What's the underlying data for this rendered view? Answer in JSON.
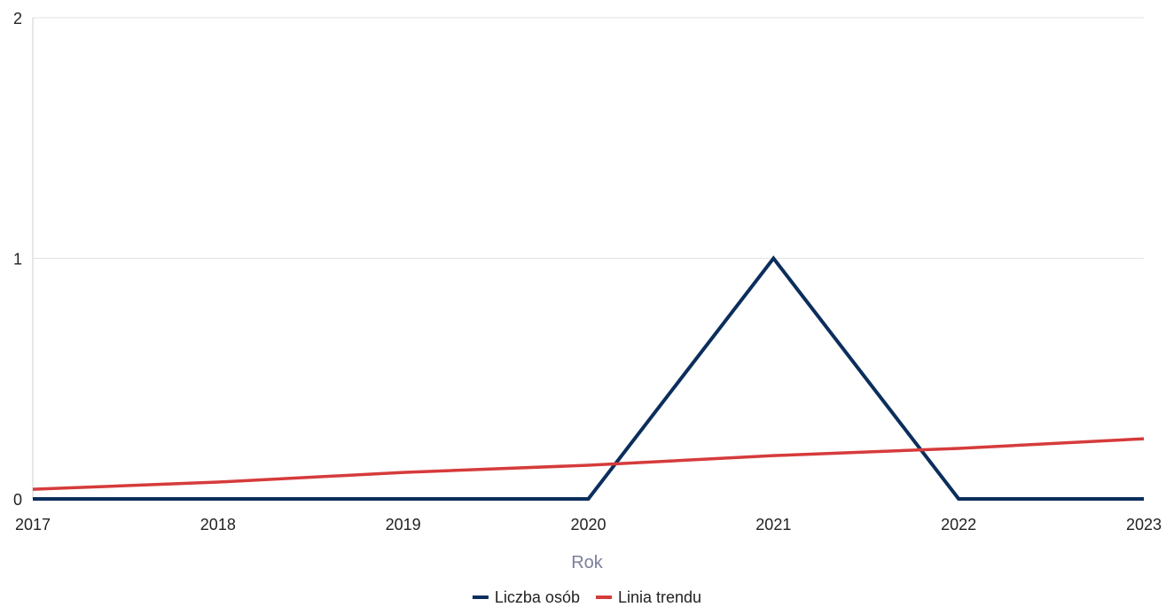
{
  "chart_data": {
    "type": "line",
    "title": "",
    "xlabel": "Rok",
    "ylabel": "",
    "x": [
      2017,
      2018,
      2019,
      2020,
      2021,
      2022,
      2023
    ],
    "xlim": [
      2017,
      2023
    ],
    "ylim": [
      0,
      2
    ],
    "y_ticks": [
      0,
      1,
      2
    ],
    "grid": "horizontal",
    "legend_position": "bottom",
    "series": [
      {
        "name": "Liczba osób",
        "color": "#0b2e5c",
        "values": [
          0,
          0,
          0,
          0,
          1,
          0,
          0
        ]
      },
      {
        "name": "Linia trendu",
        "color": "#d63b3b",
        "values": [
          0.04,
          0.07,
          0.11,
          0.14,
          0.18,
          0.21,
          0.25
        ]
      }
    ]
  }
}
